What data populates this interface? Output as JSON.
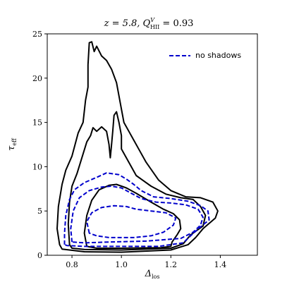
{
  "chart_data": {
    "type": "contour",
    "title": "z = 5.8, Q_HII^V = 0.93",
    "title_parts": {
      "z": "z = 5.8, ",
      "q": "Q",
      "q_sup": "V",
      "q_sub": "HII",
      "q_val": " = 0.93"
    },
    "xlabel": "Δ",
    "xlabel_sub": "los",
    "ylabel": "τ",
    "ylabel_sub": "eff",
    "xlim": [
      0.7,
      1.55
    ],
    "ylim": [
      0,
      25
    ],
    "xticks": [
      "0.8",
      "1.0",
      "1.2",
      "1.4"
    ],
    "xtick_values": [
      0.8,
      1.0,
      1.2,
      1.4
    ],
    "yticks": [
      "0",
      "5",
      "10",
      "15",
      "20",
      "25"
    ],
    "ytick_values": [
      0,
      5,
      10,
      15,
      20,
      25
    ],
    "legend": {
      "placement": "top-right",
      "entries": [
        {
          "label": "no shadows",
          "color": "#0000cc",
          "style": "dashed"
        }
      ]
    },
    "series": [
      {
        "name": "",
        "color": "#000000",
        "style": "solid",
        "contours": [
          [
            [
              0.75,
              1.2
            ],
            [
              0.74,
              3.0
            ],
            [
              0.745,
              5.5
            ],
            [
              0.76,
              8.0
            ],
            [
              0.775,
              9.6
            ],
            [
              0.8,
              11.2
            ],
            [
              0.825,
              13.8
            ],
            [
              0.845,
              15.0
            ],
            [
              0.855,
              17.5
            ],
            [
              0.865,
              19.0
            ],
            [
              0.865,
              21.5
            ],
            [
              0.87,
              24.0
            ],
            [
              0.88,
              24.1
            ],
            [
              0.89,
              23.0
            ],
            [
              0.9,
              23.6
            ],
            [
              0.92,
              22.5
            ],
            [
              0.94,
              22.0
            ],
            [
              0.96,
              21.0
            ],
            [
              0.98,
              19.5
            ],
            [
              0.99,
              18.0
            ],
            [
              1.0,
              16.5
            ],
            [
              1.01,
              15.0
            ],
            [
              1.03,
              14.0
            ],
            [
              1.05,
              13.0
            ],
            [
              1.07,
              12.0
            ],
            [
              1.1,
              10.5
            ],
            [
              1.15,
              8.5
            ],
            [
              1.2,
              7.3
            ],
            [
              1.26,
              6.6
            ],
            [
              1.32,
              6.5
            ],
            [
              1.37,
              6.0
            ],
            [
              1.39,
              5.0
            ],
            [
              1.38,
              4.2
            ],
            [
              1.33,
              3.0
            ],
            [
              1.3,
              2.0
            ],
            [
              1.27,
              1.2
            ],
            [
              1.2,
              0.6
            ],
            [
              1.0,
              0.35
            ],
            [
              0.85,
              0.4
            ],
            [
              0.76,
              0.7
            ],
            [
              0.75,
              1.2
            ]
          ],
          [
            [
              0.79,
              1.2
            ],
            [
              0.785,
              3.5
            ],
            [
              0.79,
              6.0
            ],
            [
              0.8,
              7.8
            ],
            [
              0.82,
              9.2
            ],
            [
              0.84,
              11.0
            ],
            [
              0.86,
              12.8
            ],
            [
              0.875,
              13.5
            ],
            [
              0.885,
              14.4
            ],
            [
              0.9,
              14.0
            ],
            [
              0.92,
              14.5
            ],
            [
              0.94,
              14.0
            ],
            [
              0.95,
              12.5
            ],
            [
              0.955,
              11.0
            ],
            [
              0.96,
              12.5
            ],
            [
              0.965,
              14.0
            ],
            [
              0.97,
              15.8
            ],
            [
              0.98,
              16.2
            ],
            [
              0.99,
              15.0
            ],
            [
              1.0,
              13.5
            ],
            [
              1.0,
              12.0
            ],
            [
              1.03,
              10.5
            ],
            [
              1.06,
              9.0
            ],
            [
              1.12,
              7.8
            ],
            [
              1.18,
              6.9
            ],
            [
              1.24,
              6.5
            ],
            [
              1.29,
              6.3
            ],
            [
              1.32,
              5.5
            ],
            [
              1.34,
              4.5
            ],
            [
              1.33,
              3.3
            ],
            [
              1.28,
              2.3
            ],
            [
              1.25,
              1.3
            ],
            [
              1.2,
              0.8
            ],
            [
              1.0,
              0.6
            ],
            [
              0.85,
              0.65
            ],
            [
              0.8,
              0.8
            ],
            [
              0.79,
              1.2
            ]
          ],
          [
            [
              0.86,
              1.0
            ],
            [
              0.85,
              2.5
            ],
            [
              0.86,
              4.5
            ],
            [
              0.88,
              6.2
            ],
            [
              0.91,
              7.4
            ],
            [
              0.95,
              7.9
            ],
            [
              0.98,
              8.0
            ],
            [
              1.02,
              7.6
            ],
            [
              1.06,
              7.0
            ],
            [
              1.12,
              6.0
            ],
            [
              1.17,
              5.2
            ],
            [
              1.21,
              4.7
            ],
            [
              1.235,
              4.0
            ],
            [
              1.24,
              3.0
            ],
            [
              1.225,
              2.3
            ],
            [
              1.205,
              1.5
            ],
            [
              1.2,
              1.0
            ],
            [
              1.16,
              0.85
            ],
            [
              1.0,
              0.8
            ],
            [
              0.9,
              0.8
            ],
            [
              0.86,
              1.0
            ]
          ]
        ]
      },
      {
        "name": "no shadows",
        "color": "#0000cc",
        "style": "dashed",
        "contours": [
          [
            [
              0.77,
              1.2
            ],
            [
              0.77,
              2.5
            ],
            [
              0.775,
              4.5
            ],
            [
              0.79,
              6.3
            ],
            [
              0.81,
              7.4
            ],
            [
              0.85,
              8.2
            ],
            [
              0.9,
              8.8
            ],
            [
              0.94,
              9.3
            ],
            [
              0.99,
              9.1
            ],
            [
              1.02,
              8.6
            ],
            [
              1.05,
              8.0
            ],
            [
              1.08,
              7.3
            ],
            [
              1.13,
              6.6
            ],
            [
              1.2,
              6.4
            ],
            [
              1.27,
              6.1
            ],
            [
              1.32,
              5.6
            ],
            [
              1.35,
              5.0
            ],
            [
              1.355,
              4.0
            ],
            [
              1.32,
              3.2
            ],
            [
              1.28,
              2.2
            ],
            [
              1.25,
              1.4
            ],
            [
              1.15,
              1.0
            ],
            [
              1.0,
              1.0
            ],
            [
              0.85,
              1.0
            ],
            [
              0.78,
              1.1
            ],
            [
              0.77,
              1.2
            ]
          ],
          [
            [
              0.8,
              1.5
            ],
            [
              0.795,
              3.0
            ],
            [
              0.805,
              5.0
            ],
            [
              0.83,
              6.5
            ],
            [
              0.87,
              7.3
            ],
            [
              0.92,
              7.7
            ],
            [
              0.96,
              7.8
            ],
            [
              1.0,
              7.6
            ],
            [
              1.04,
              7.0
            ],
            [
              1.08,
              6.4
            ],
            [
              1.14,
              6.0
            ],
            [
              1.2,
              5.9
            ],
            [
              1.26,
              5.7
            ],
            [
              1.31,
              5.2
            ],
            [
              1.33,
              4.3
            ],
            [
              1.32,
              3.4
            ],
            [
              1.29,
              2.6
            ],
            [
              1.24,
              1.9
            ],
            [
              1.1,
              1.6
            ],
            [
              0.95,
              1.5
            ],
            [
              0.85,
              1.4
            ],
            [
              0.8,
              1.5
            ]
          ],
          [
            [
              0.87,
              2.5
            ],
            [
              0.86,
              3.8
            ],
            [
              0.88,
              4.8
            ],
            [
              0.92,
              5.4
            ],
            [
              0.97,
              5.6
            ],
            [
              1.02,
              5.5
            ],
            [
              1.06,
              5.2
            ],
            [
              1.12,
              5.0
            ],
            [
              1.18,
              4.8
            ],
            [
              1.22,
              4.2
            ],
            [
              1.21,
              3.4
            ],
            [
              1.17,
              2.6
            ],
            [
              1.12,
              2.2
            ],
            [
              1.05,
              2.0
            ],
            [
              0.95,
              2.0
            ],
            [
              0.9,
              2.2
            ],
            [
              0.87,
              2.5
            ]
          ]
        ]
      }
    ]
  }
}
